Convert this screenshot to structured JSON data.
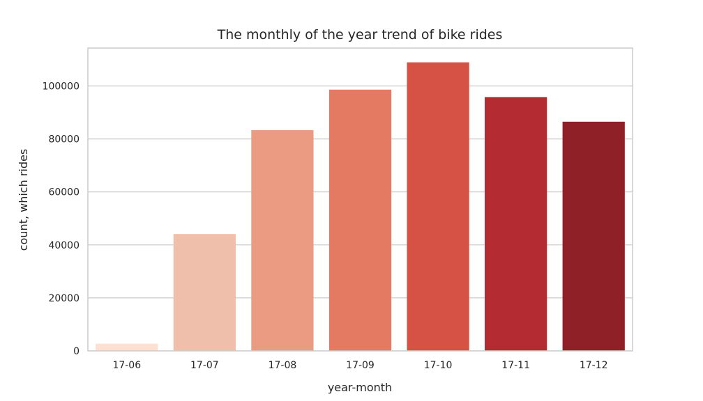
{
  "chart_data": {
    "type": "bar",
    "title": "The monthly of the year trend of bike rides",
    "xlabel": "year-month",
    "ylabel": "count, which rides",
    "categories": [
      "17-06",
      "17-07",
      "17-08",
      "17-09",
      "17-10",
      "17-11",
      "17-12"
    ],
    "values": [
      2700,
      44100,
      83300,
      98600,
      108900,
      95800,
      86500
    ],
    "colors": [
      "#fee0d2",
      "#f0bfac",
      "#ea9b82",
      "#e57a62",
      "#d55245",
      "#b42c31",
      "#8f2027"
    ],
    "ylim": [
      0,
      114300
    ],
    "yticks": [
      0,
      20000,
      40000,
      60000,
      80000,
      100000
    ],
    "grid": "horizontal",
    "legend": "none",
    "background": "#ffffff",
    "grid_color": "#cccccc",
    "spine_color": "#cccccc"
  }
}
